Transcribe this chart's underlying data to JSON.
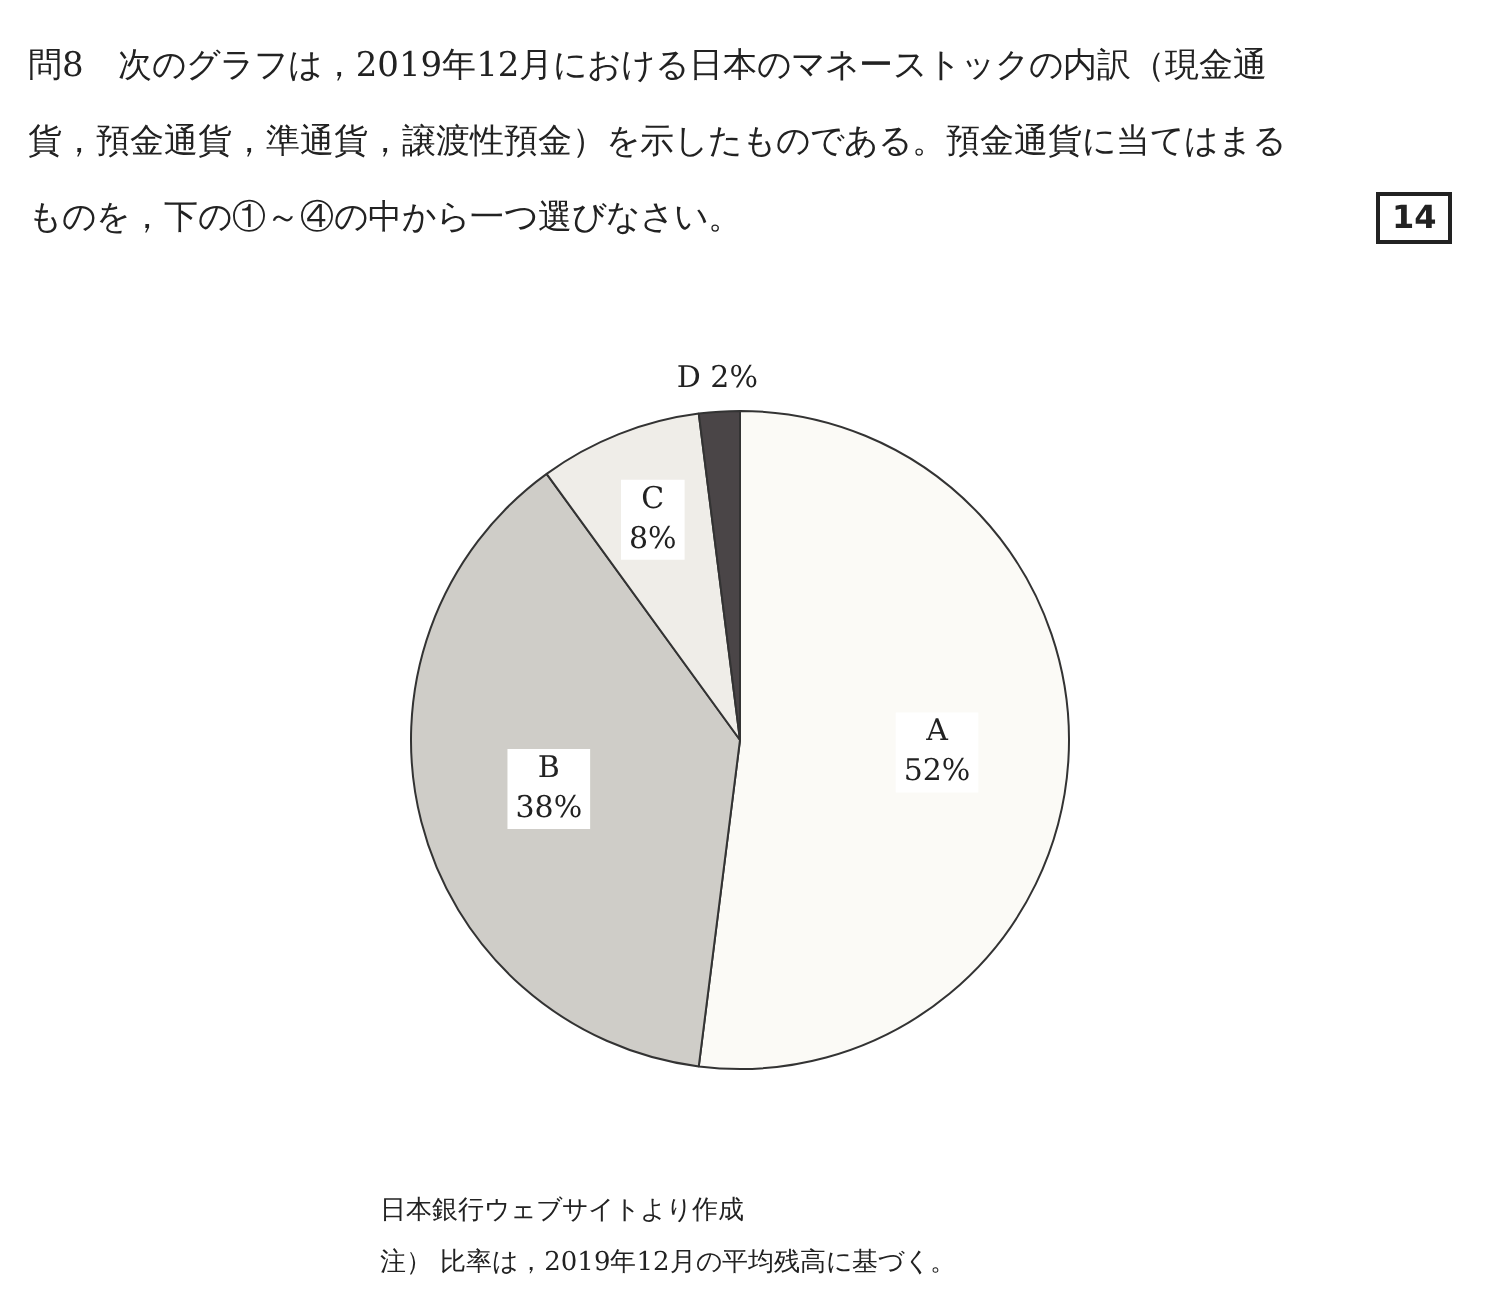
{
  "chart_data": {
    "type": "pie",
    "title": "問8　次のグラフは，2019年12月における日本のマネーストックの内訳（現金通貨，預金通貨，準通貨，譲渡性預金）を示したものである。預金通貨に当てはまるものを，下の①～④の中から一つ選びなさい。",
    "categories": [
      "A",
      "B",
      "C",
      "D"
    ],
    "values": [
      52,
      38,
      8,
      2
    ],
    "value_labels": [
      "52%",
      "38%",
      "8%",
      "2%"
    ],
    "colors": [
      "#fbfaf6",
      "#cfcdc8",
      "#efede8",
      "#4a4547"
    ],
    "legend": false,
    "annotations": [
      "14",
      "日本銀行ウェブサイトより作成",
      "注）  比率は，2019年12月の平均残高に基づく。"
    ]
  }
}
